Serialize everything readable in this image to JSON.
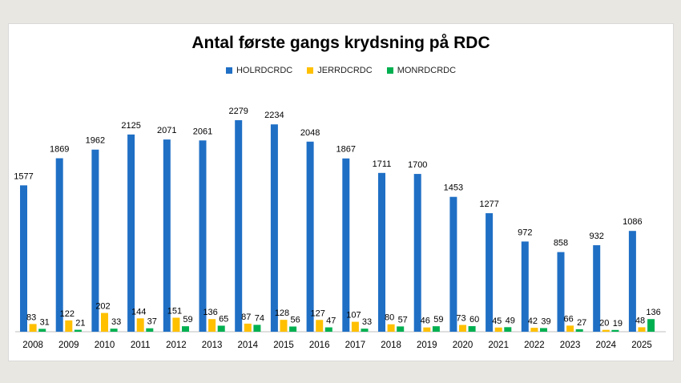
{
  "chart_data": {
    "type": "bar",
    "title": "Antal første gangs krydsning på RDC",
    "categories": [
      "2008",
      "2009",
      "2010",
      "2011",
      "2012",
      "2013",
      "2014",
      "2015",
      "2016",
      "2017",
      "2018",
      "2019",
      "2020",
      "2021",
      "2022",
      "2023",
      "2024",
      "2025"
    ],
    "series": [
      {
        "name": "HOLRDCRDC",
        "color": "#1f6fc5",
        "values": [
          1577,
          1869,
          1962,
          2125,
          2071,
          2061,
          2279,
          2234,
          2048,
          1867,
          1711,
          1700,
          1453,
          1277,
          972,
          858,
          932,
          1086
        ]
      },
      {
        "name": "JERRDCRDC",
        "color": "#ffc000",
        "values": [
          83,
          122,
          202,
          144,
          151,
          136,
          87,
          128,
          127,
          107,
          80,
          46,
          73,
          45,
          42,
          66,
          20,
          48
        ]
      },
      {
        "name": "MONRDCRDC",
        "color": "#00b050",
        "values": [
          31,
          21,
          33,
          37,
          59,
          65,
          74,
          56,
          47,
          33,
          57,
          59,
          60,
          49,
          39,
          27,
          19,
          136
        ]
      }
    ],
    "ylim": [
      0,
      2400
    ],
    "grid": false,
    "legend_position": "top"
  }
}
